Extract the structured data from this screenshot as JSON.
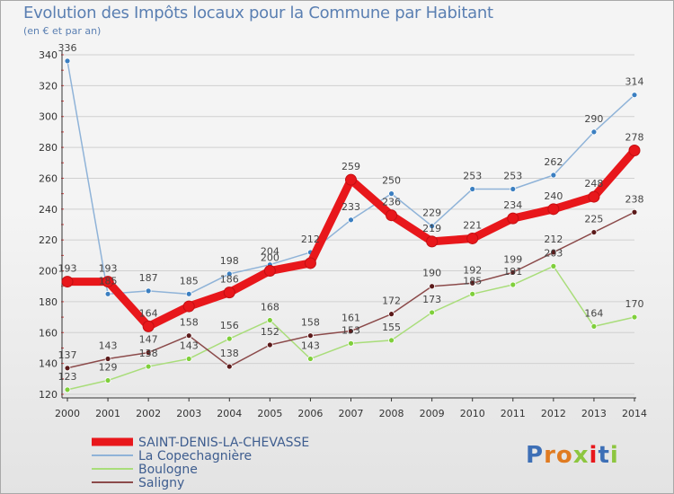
{
  "header": {
    "title": "Evolution des Impôts locaux pour la Commune par Habitant",
    "subtitle": "(en € et par an)"
  },
  "logo_text": "Proxiti",
  "colors": {
    "grid": "#d0d0d0",
    "axis": "#333333",
    "tick_text": "#333333",
    "label_text": "#444444"
  },
  "chart_data": {
    "type": "line",
    "title": "Evolution des Impôts locaux pour la Commune par Habitant",
    "subtitle": "(en € et par an)",
    "xlabel": "",
    "ylabel": "",
    "ylim": [
      120,
      340
    ],
    "yticks": [
      120,
      140,
      160,
      180,
      200,
      220,
      240,
      260,
      280,
      300,
      320,
      340
    ],
    "grid": "horizontal",
    "legend_position": "bottom-left",
    "categories": [
      "2000",
      "2001",
      "2002",
      "2003",
      "2004",
      "2005",
      "2006",
      "2007",
      "2008",
      "2009",
      "2010",
      "2011",
      "2012",
      "2013",
      "2014"
    ],
    "series": [
      {
        "name": "SAINT-DENIS-LA-CHEVASSE",
        "color": "#e8171b",
        "marker": "#e8171b",
        "values": [
          193,
          193,
          164,
          177,
          186,
          200,
          205,
          259,
          236,
          219,
          221,
          234,
          240,
          248,
          278
        ],
        "labels": [
          "193",
          "193",
          "164",
          "",
          "186",
          "200",
          "",
          "259",
          "236",
          "219",
          "221",
          "234",
          "240",
          "248",
          "278"
        ]
      },
      {
        "name": "La Copechagnière",
        "color": "#8fb3d8",
        "marker": "#3b7fc1",
        "values": [
          336,
          185,
          187,
          185,
          198,
          204,
          212,
          233,
          250,
          229,
          253,
          253,
          262,
          290,
          314
        ],
        "labels": [
          "336",
          "185",
          "187",
          "185",
          "198",
          "204",
          "212",
          "233",
          "250",
          "229",
          "253",
          "253",
          "262",
          "290",
          "314"
        ]
      },
      {
        "name": "Boulogne",
        "color": "#a9dd7a",
        "marker": "#7fcf3b",
        "values": [
          123,
          129,
          138,
          143,
          156,
          168,
          143,
          153,
          155,
          173,
          185,
          191,
          203,
          164,
          170
        ],
        "labels": [
          "123",
          "129",
          "138",
          "143",
          "156",
          "168",
          "143",
          "153",
          "155",
          "173",
          "185",
          "191",
          "203",
          "164",
          "170"
        ]
      },
      {
        "name": "Saligny",
        "color": "#8b4a4a",
        "marker": "#5b1a1a",
        "values": [
          137,
          143,
          147,
          158,
          138,
          152,
          158,
          161,
          172,
          190,
          192,
          199,
          212,
          225,
          238
        ],
        "labels": [
          "137",
          "143",
          "147",
          "158",
          "138",
          "152",
          "158",
          "161",
          "172",
          "190",
          "192",
          "199",
          "212",
          "225",
          "238"
        ]
      }
    ]
  }
}
